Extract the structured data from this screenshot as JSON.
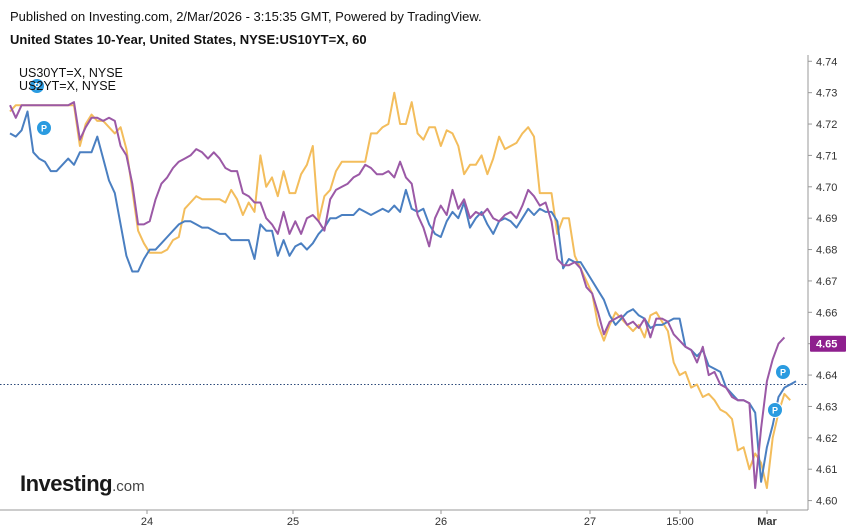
{
  "header": {
    "published": "Published on Investing.com, 2/Mar/2026 - 3:15:35 GMT, Powered by TradingView.",
    "symbol": "United States 10-Year, United States, NYSE:US10YT=X, 60"
  },
  "legend": {
    "series_a": "US30YT=X, NYSE",
    "series_b": "US2YT=X, NYSE"
  },
  "logo": {
    "name": "Investing",
    "suffix": ".com"
  },
  "current_price_label": "4.65",
  "marker_letter": "P",
  "colors": {
    "us10": "#4a7fc1",
    "us30": "#9b59a6",
    "us2": "#f3bd5c",
    "price_tag": "#8e1f8e",
    "marker": "#2a9be0",
    "dotted_line": "#2c4a7a",
    "axis": "#999999"
  },
  "chart_data": {
    "type": "line",
    "title": "United States 10-Year, United States, NYSE:US10YT=X, 60",
    "ylim": [
      4.597,
      4.742
    ],
    "yticks": [
      "4.74",
      "4.73",
      "4.72",
      "4.71",
      "4.70",
      "4.69",
      "4.68",
      "4.67",
      "4.66",
      "4.65",
      "4.64",
      "4.63",
      "4.62",
      "4.61",
      "4.60"
    ],
    "xtick_labels": [
      "24",
      "25",
      "26",
      "27",
      "15:00",
      "Mar"
    ],
    "grid": false,
    "current_value": 4.637,
    "series": [
      {
        "id": "us10",
        "values": [
          4.717,
          4.716,
          4.718,
          4.724,
          4.711,
          4.709,
          4.708,
          4.705,
          4.705,
          4.707,
          4.709,
          4.707,
          4.711,
          4.711,
          4.711,
          4.716,
          4.709,
          4.702,
          4.698,
          4.688,
          4.678,
          4.673,
          4.673,
          4.677,
          4.68,
          4.68,
          4.682,
          4.684,
          4.686,
          4.688,
          4.689,
          4.689,
          4.688,
          4.687,
          4.687,
          4.686,
          4.685,
          4.685,
          4.683,
          4.683,
          4.683,
          4.683,
          4.677,
          4.688,
          4.686,
          4.686,
          4.678,
          4.683,
          4.678,
          4.681,
          4.682,
          4.68,
          4.682,
          4.685,
          4.687,
          4.69,
          4.69,
          4.691,
          4.691,
          4.691,
          4.693,
          4.692,
          4.691,
          4.692,
          4.693,
          4.692,
          4.694,
          4.692,
          4.699,
          4.693,
          4.692,
          4.693,
          4.688,
          4.685,
          4.684,
          4.689,
          4.692,
          4.69,
          4.695,
          4.687,
          4.69,
          4.692,
          4.688,
          4.685,
          4.689,
          4.69,
          4.689,
          4.687,
          4.69,
          4.693,
          4.691,
          4.693,
          4.692,
          4.692,
          4.689,
          4.674,
          4.677,
          4.676,
          4.676,
          4.673,
          4.67,
          4.667,
          4.664,
          4.659,
          4.656,
          4.658,
          4.66,
          4.661,
          4.659,
          4.658,
          4.655,
          4.656,
          4.656,
          4.657,
          4.658,
          4.658,
          4.649,
          4.648,
          4.646,
          4.648,
          4.643,
          4.642,
          4.641,
          4.636,
          4.634,
          4.632,
          4.632,
          4.631,
          4.628,
          4.606,
          4.617,
          4.624,
          4.633,
          4.636,
          4.637,
          4.638
        ]
      },
      {
        "id": "us30",
        "values": [
          4.726,
          4.722,
          4.726,
          4.726,
          4.726,
          4.726,
          4.726,
          4.726,
          4.726,
          4.726,
          4.726,
          4.727,
          4.715,
          4.719,
          4.722,
          4.722,
          4.721,
          4.722,
          4.721,
          4.713,
          4.71,
          4.701,
          4.688,
          4.688,
          4.689,
          4.696,
          4.701,
          4.703,
          4.706,
          4.708,
          4.709,
          4.71,
          4.712,
          4.711,
          4.709,
          4.711,
          4.709,
          4.706,
          4.705,
          4.705,
          4.698,
          4.697,
          4.695,
          4.695,
          4.69,
          4.688,
          4.685,
          4.692,
          4.685,
          4.689,
          4.685,
          4.69,
          4.691,
          4.689,
          4.686,
          4.696,
          4.699,
          4.7,
          4.701,
          4.703,
          4.704,
          4.707,
          4.706,
          4.704,
          4.704,
          4.705,
          4.703,
          4.708,
          4.703,
          4.701,
          4.691,
          4.687,
          4.681,
          4.69,
          4.694,
          4.691,
          4.699,
          4.693,
          4.696,
          4.69,
          4.692,
          4.691,
          4.693,
          4.69,
          4.689,
          4.691,
          4.692,
          4.69,
          4.694,
          4.699,
          4.697,
          4.694,
          4.695,
          4.689,
          4.677,
          4.675,
          4.675,
          4.676,
          4.674,
          4.668,
          4.666,
          4.66,
          4.653,
          4.657,
          4.658,
          4.659,
          4.656,
          4.657,
          4.655,
          4.658,
          4.652,
          4.658,
          4.658,
          4.657,
          4.653,
          4.651,
          4.649,
          4.648,
          4.644,
          4.649,
          4.64,
          4.641,
          4.637,
          4.636,
          4.633,
          4.632,
          4.632,
          4.631,
          4.604,
          4.623,
          4.638,
          4.645,
          4.65,
          4.652
        ]
      },
      {
        "id": "us2",
        "values": [
          4.724,
          4.726,
          4.726,
          4.726,
          4.726,
          4.726,
          4.726,
          4.726,
          4.726,
          4.726,
          4.726,
          4.726,
          4.713,
          4.72,
          4.723,
          4.721,
          4.721,
          4.719,
          4.717,
          4.719,
          4.712,
          4.699,
          4.686,
          4.682,
          4.679,
          4.679,
          4.679,
          4.68,
          4.683,
          4.684,
          4.693,
          4.695,
          4.697,
          4.696,
          4.696,
          4.696,
          4.696,
          4.695,
          4.699,
          4.696,
          4.691,
          4.695,
          4.692,
          4.71,
          4.7,
          4.703,
          4.697,
          4.705,
          4.698,
          4.698,
          4.704,
          4.707,
          4.713,
          4.689,
          4.697,
          4.699,
          4.705,
          4.708,
          4.708,
          4.708,
          4.708,
          4.708,
          4.717,
          4.717,
          4.719,
          4.72,
          4.73,
          4.72,
          4.72,
          4.727,
          4.717,
          4.715,
          4.719,
          4.719,
          4.713,
          4.718,
          4.717,
          4.713,
          4.704,
          4.707,
          4.707,
          4.71,
          4.704,
          4.709,
          4.716,
          4.712,
          4.713,
          4.714,
          4.717,
          4.719,
          4.716,
          4.698,
          4.698,
          4.698,
          4.685,
          4.69,
          4.69,
          4.678,
          4.674,
          4.67,
          4.666,
          4.656,
          4.651,
          4.656,
          4.66,
          4.658,
          4.656,
          4.654,
          4.656,
          4.652,
          4.659,
          4.66,
          4.657,
          4.654,
          4.644,
          4.64,
          4.641,
          4.636,
          4.637,
          4.633,
          4.634,
          4.632,
          4.629,
          4.628,
          4.626,
          4.616,
          4.617,
          4.61,
          4.615,
          4.612,
          4.604,
          4.62,
          4.628,
          4.634,
          4.632
        ]
      }
    ]
  }
}
